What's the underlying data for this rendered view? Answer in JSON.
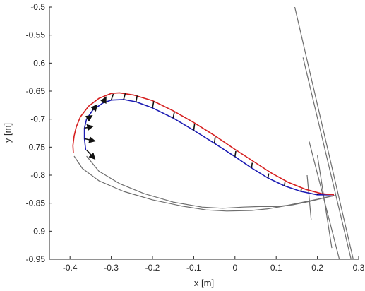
{
  "chart_data": {
    "type": "line",
    "title": "",
    "xlabel": "x [m]",
    "ylabel": "y [m]",
    "xlim": [
      -0.45,
      0.3
    ],
    "ylim": [
      -0.95,
      -0.5
    ],
    "xticks": [
      -0.4,
      -0.3,
      -0.2,
      -0.1,
      0,
      0.1,
      0.2,
      0.3
    ],
    "yticks": [
      -0.5,
      -0.55,
      -0.6,
      -0.65,
      -0.7,
      -0.75,
      -0.8,
      -0.85,
      -0.9,
      -0.95
    ],
    "xtick_labels": [
      "-0.4",
      "-0.3",
      "-0.2",
      "-0.1",
      "0",
      "0.1",
      "0.2",
      "0.3"
    ],
    "ytick_labels": [
      "-0.5",
      "-0.55",
      "-0.6",
      "-0.65",
      "-0.7",
      "-0.75",
      "-0.8",
      "-0.85",
      "-0.9",
      "-0.95"
    ],
    "grid": false,
    "legend": "none",
    "colors": {
      "red": "#d62020",
      "blue": "#1c1cb4",
      "gray": "#6e6e6e",
      "black": "#111111",
      "axis": "#262626"
    },
    "series": [
      {
        "color": "red",
        "x": [
          0.24,
          0.21,
          0.17,
          0.13,
          0.09,
          0.05,
          0.0,
          -0.05,
          -0.1,
          -0.15,
          -0.2,
          -0.245,
          -0.28,
          -0.3,
          -0.33,
          -0.355,
          -0.375,
          -0.385,
          -0.39,
          -0.393,
          -0.392
        ],
        "y": [
          -0.835,
          -0.833,
          -0.825,
          -0.813,
          -0.797,
          -0.778,
          -0.754,
          -0.729,
          -0.706,
          -0.685,
          -0.667,
          -0.657,
          -0.653,
          -0.654,
          -0.663,
          -0.677,
          -0.696,
          -0.714,
          -0.73,
          -0.747,
          -0.76
        ]
      },
      {
        "color": "blue",
        "x": [
          0.24,
          0.2,
          0.16,
          0.12,
          0.08,
          0.04,
          0.0,
          -0.05,
          -0.1,
          -0.15,
          -0.2,
          -0.24,
          -0.27,
          -0.3,
          -0.32,
          -0.345,
          -0.36,
          -0.365,
          -0.365,
          -0.362
        ],
        "y": [
          -0.835,
          -0.835,
          -0.829,
          -0.819,
          -0.805,
          -0.787,
          -0.767,
          -0.743,
          -0.72,
          -0.698,
          -0.68,
          -0.669,
          -0.665,
          -0.666,
          -0.671,
          -0.684,
          -0.7,
          -0.716,
          -0.735,
          -0.755
        ]
      },
      {
        "color": "gray",
        "x": [
          -0.39,
          -0.37,
          -0.33,
          -0.27,
          -0.2,
          -0.13,
          -0.07,
          -0.02,
          0.04,
          0.08,
          0.12,
          0.16,
          0.2,
          0.23,
          0.245
        ],
        "y": [
          -0.766,
          -0.788,
          -0.81,
          -0.829,
          -0.844,
          -0.855,
          -0.862,
          -0.864,
          -0.863,
          -0.86,
          -0.855,
          -0.849,
          -0.843,
          -0.838,
          -0.836
        ]
      },
      {
        "color": "gray",
        "x": [
          -0.36,
          -0.33,
          -0.28,
          -0.22,
          -0.15,
          -0.08,
          -0.03,
          0.02,
          0.06,
          0.1,
          0.14,
          0.18,
          0.22,
          0.245
        ],
        "y": [
          -0.766,
          -0.793,
          -0.815,
          -0.833,
          -0.848,
          -0.857,
          -0.859,
          -0.857,
          -0.856,
          -0.856,
          -0.853,
          -0.847,
          -0.84,
          -0.836
        ]
      },
      {
        "color": "gray",
        "x": [
          0.145,
          0.29
        ],
        "y": [
          -0.5,
          -0.96
        ]
      },
      {
        "color": "gray",
        "x": [
          0.165,
          0.285
        ],
        "y": [
          -0.59,
          -0.96
        ]
      },
      {
        "color": "gray",
        "x": [
          0.18,
          0.255
        ],
        "y": [
          -0.74,
          -0.955
        ]
      },
      {
        "color": "gray",
        "x": [
          0.2,
          0.235
        ],
        "y": [
          -0.765,
          -0.93
        ]
      },
      {
        "color": "gray",
        "x": [
          0.175,
          0.185
        ],
        "y": [
          -0.8,
          -0.88
        ]
      }
    ],
    "vectors": [
      {
        "x": -0.36,
        "y": -0.755,
        "dx": 0.02,
        "dy": -0.016
      },
      {
        "x": -0.365,
        "y": -0.735,
        "dx": 0.025,
        "dy": -0.004
      },
      {
        "x": -0.365,
        "y": -0.716,
        "dx": 0.02,
        "dy": 0.003
      },
      {
        "x": -0.36,
        "y": -0.7,
        "dx": 0.013,
        "dy": 0.006
      },
      {
        "x": -0.345,
        "y": -0.684,
        "dx": 0.01,
        "dy": 0.009
      },
      {
        "x": -0.32,
        "y": -0.671,
        "dx": 0.007,
        "dy": 0.01
      },
      {
        "x": -0.3,
        "y": -0.666,
        "dx": 0.005,
        "dy": 0.011
      },
      {
        "x": -0.27,
        "y": -0.665,
        "dx": 0.004,
        "dy": 0.011
      },
      {
        "x": -0.24,
        "y": -0.669,
        "dx": 0.003,
        "dy": 0.011
      },
      {
        "x": -0.2,
        "y": -0.68,
        "dx": 0.003,
        "dy": 0.012
      },
      {
        "x": -0.15,
        "y": -0.698,
        "dx": 0.003,
        "dy": 0.011
      },
      {
        "x": -0.1,
        "y": -0.72,
        "dx": 0.002,
        "dy": 0.011
      },
      {
        "x": -0.05,
        "y": -0.743,
        "dx": 0.002,
        "dy": 0.011
      },
      {
        "x": 0.0,
        "y": -0.767,
        "dx": 0.002,
        "dy": 0.01
      },
      {
        "x": 0.04,
        "y": -0.787,
        "dx": 0.002,
        "dy": 0.009
      },
      {
        "x": 0.08,
        "y": -0.805,
        "dx": 0.002,
        "dy": 0.008
      },
      {
        "x": 0.12,
        "y": -0.819,
        "dx": 0.001,
        "dy": 0.006
      },
      {
        "x": 0.16,
        "y": -0.829,
        "dx": 0.001,
        "dy": 0.004
      },
      {
        "x": 0.2,
        "y": -0.835,
        "dx": 0.001,
        "dy": 0.002
      }
    ]
  }
}
